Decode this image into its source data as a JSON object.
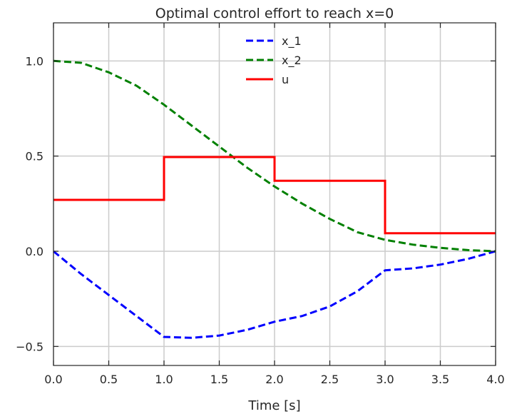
{
  "chart_data": {
    "type": "line",
    "title": "Optimal control effort to reach x=0",
    "xlabel": "Time [s]",
    "ylabel": "",
    "xlim": [
      0.0,
      4.0
    ],
    "ylim": [
      -0.6,
      1.2
    ],
    "xticks": [
      0.0,
      0.5,
      1.0,
      1.5,
      2.0,
      2.5,
      3.0,
      3.5,
      4.0
    ],
    "xtick_labels": [
      "0.0",
      "0.5",
      "1.0",
      "1.5",
      "2.0",
      "2.5",
      "3.0",
      "3.5",
      "4.0"
    ],
    "yticks": [
      -0.5,
      0.0,
      0.5,
      1.0
    ],
    "ytick_labels": [
      "−0.5",
      "0.0",
      "0.5",
      "1.0"
    ],
    "grid": true,
    "legend_position": "top-center",
    "series": [
      {
        "name": "x_1",
        "color": "#0000ff",
        "style": "dashed",
        "x": [
          0.0,
          0.25,
          0.5,
          0.75,
          1.0,
          1.25,
          1.5,
          1.75,
          2.0,
          2.25,
          2.5,
          2.75,
          3.0,
          3.25,
          3.5,
          3.75,
          4.0
        ],
        "y": [
          0.0,
          -0.12,
          -0.23,
          -0.34,
          -0.45,
          -0.455,
          -0.443,
          -0.413,
          -0.37,
          -0.34,
          -0.29,
          -0.21,
          -0.1,
          -0.09,
          -0.07,
          -0.04,
          0.0
        ]
      },
      {
        "name": "x_2",
        "color": "#008000",
        "style": "dashed",
        "x": [
          0.0,
          0.25,
          0.5,
          0.75,
          1.0,
          1.25,
          1.5,
          1.75,
          2.0,
          2.25,
          2.5,
          2.75,
          3.0,
          3.25,
          3.5,
          3.75,
          4.0
        ],
        "y": [
          1.0,
          0.99,
          0.94,
          0.87,
          0.77,
          0.66,
          0.55,
          0.44,
          0.34,
          0.25,
          0.17,
          0.1,
          0.06,
          0.035,
          0.018,
          0.006,
          0.0
        ]
      },
      {
        "name": "u",
        "color": "#ff0000",
        "style": "solid",
        "x": [
          0.0,
          1.0,
          1.0,
          2.0,
          2.0,
          3.0,
          3.0,
          4.0
        ],
        "y": [
          0.27,
          0.27,
          0.495,
          0.495,
          0.37,
          0.37,
          0.095,
          0.095
        ]
      }
    ]
  }
}
